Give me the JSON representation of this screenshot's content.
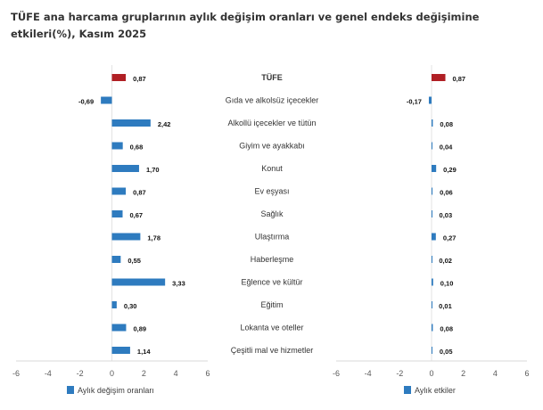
{
  "title": "TÜFE ana harcama gruplarının aylık değişim oranları ve genel endeks değişimine etkileri(%), Kasım 2025",
  "colors": {
    "highlight": "#B01F24",
    "bar": "#2E7BBF"
  },
  "chart_data": [
    {
      "type": "bar",
      "orientation": "horizontal",
      "categories": [
        "TÜFE",
        "Gıda ve alkolsüz içecekler",
        "Alkollü içecekler ve tütün",
        "Giyim ve ayakkabı",
        "Konut",
        "Ev eşyası",
        "Sağlık",
        "Ulaştırma",
        "Haberleşme",
        "Eğlence ve kültür",
        "Eğitim",
        "Lokanta ve oteller",
        "Çeşitli mal ve hizmetler"
      ],
      "series": [
        {
          "name": "Aylık değişim oranları",
          "values": [
            0.87,
            -0.69,
            2.42,
            0.68,
            1.7,
            0.87,
            0.67,
            1.78,
            0.55,
            3.33,
            0.3,
            0.89,
            1.14
          ]
        }
      ],
      "value_labels": [
        "0,87",
        "-0,69",
        "2,42",
        "0,68",
        "1,70",
        "0,87",
        "0,67",
        "1,78",
        "0,55",
        "3,33",
        "0,30",
        "0,89",
        "1,14"
      ],
      "xlim": [
        -6,
        6
      ],
      "xticks": [
        "-6",
        "-4",
        "-2",
        "0",
        "2",
        "4",
        "6"
      ],
      "legend": "bottom",
      "grid": false
    },
    {
      "type": "bar",
      "orientation": "horizontal",
      "categories": [
        "TÜFE",
        "Gıda ve alkolsüz içecekler",
        "Alkollü içecekler ve tütün",
        "Giyim ve ayakkabı",
        "Konut",
        "Ev eşyası",
        "Sağlık",
        "Ulaştırma",
        "Haberleşme",
        "Eğlence ve kültür",
        "Eğitim",
        "Lokanta ve oteller",
        "Çeşitli mal ve hizmetler"
      ],
      "series": [
        {
          "name": "Aylık etkiler",
          "values": [
            0.87,
            -0.17,
            0.08,
            0.04,
            0.29,
            0.06,
            0.03,
            0.27,
            0.02,
            0.1,
            0.01,
            0.08,
            0.05
          ]
        }
      ],
      "value_labels": [
        "0,87",
        "-0,17",
        "0,08",
        "0,04",
        "0,29",
        "0,06",
        "0,03",
        "0,27",
        "0,02",
        "0,10",
        "0,01",
        "0,08",
        "0,05"
      ],
      "xlim": [
        -6,
        6
      ],
      "xticks": [
        "-6",
        "-4",
        "-2",
        "0",
        "2",
        "4",
        "6"
      ],
      "legend": "bottom",
      "grid": false
    }
  ]
}
